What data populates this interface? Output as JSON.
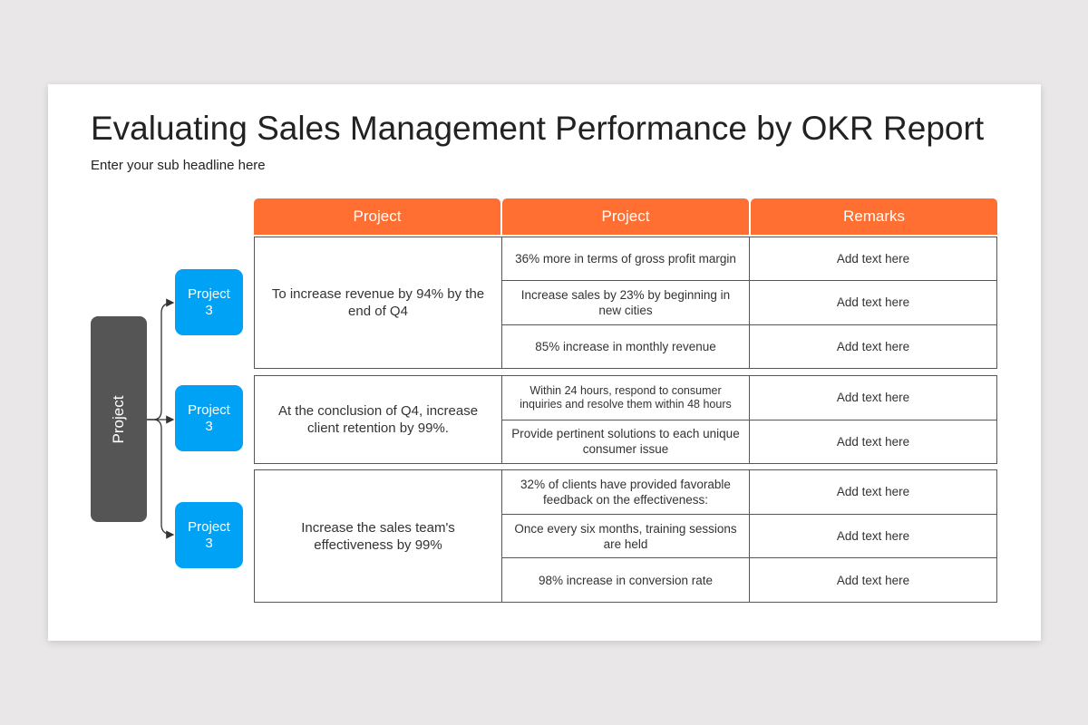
{
  "title": "Evaluating Sales Management Performance by OKR Report",
  "subtitle": "Enter your sub headline here",
  "colors": {
    "header": "#ff6f31",
    "project_box": "#00a2f5",
    "root_box": "#555555"
  },
  "diagram": {
    "root": "Project",
    "branches": [
      {
        "line1": "Project",
        "line2": "3"
      },
      {
        "line1": "Project",
        "line2": "3"
      },
      {
        "line1": "Project",
        "line2": "3"
      }
    ]
  },
  "table": {
    "headers": [
      "Project",
      "Project",
      "Remarks"
    ],
    "groups": [
      {
        "goal": "To increase revenue by 94% by the end of Q4",
        "rows": [
          {
            "kr": "36% more in terms of gross profit margin",
            "remark": "Add text here"
          },
          {
            "kr": "Increase sales by 23% by beginning in new cities",
            "remark": "Add text here"
          },
          {
            "kr": "85% increase in monthly revenue",
            "remark": "Add text here"
          }
        ]
      },
      {
        "goal": "At the conclusion of Q4, increase client retention by 99%.",
        "rows": [
          {
            "kr": "Within 24 hours, respond to consumer inquiries and resolve them within 48 hours",
            "remark": "Add text here"
          },
          {
            "kr": "Provide pertinent solutions to each unique consumer issue",
            "remark": "Add text here"
          }
        ]
      },
      {
        "goal": "Increase the sales team's effectiveness by 99%",
        "rows": [
          {
            "kr": "32% of clients have provided favorable feedback on the effectiveness:",
            "remark": "Add text here"
          },
          {
            "kr": "Once every six months, training sessions are held",
            "remark": "Add text here"
          },
          {
            "kr": "98% increase in conversion rate",
            "remark": "Add text here"
          }
        ]
      }
    ]
  }
}
